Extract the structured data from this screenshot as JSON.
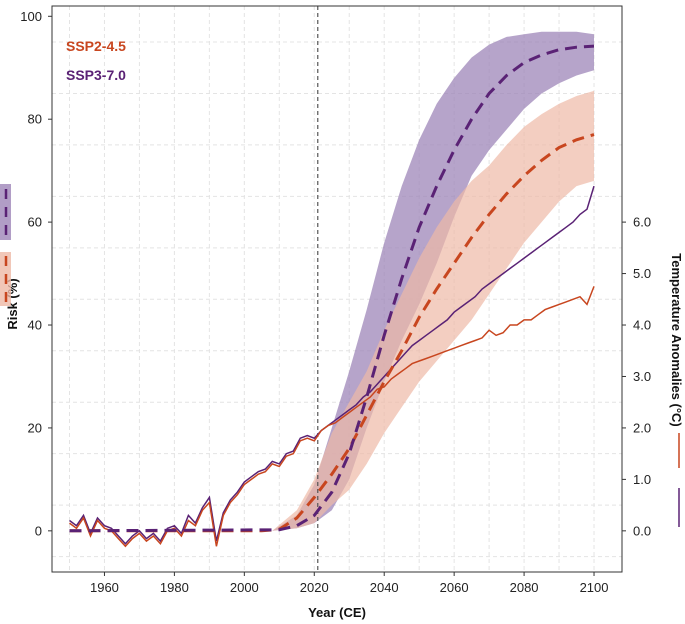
{
  "chart_data": {
    "type": "line",
    "xlabel": "Year (CE)",
    "ylabel": "Risk (%)",
    "y2label": "Temperature Anomalies (°C)",
    "xlim": [
      1945,
      2108
    ],
    "ylim": [
      -8,
      102
    ],
    "y2_mapping": "risk = 10 × temperature (°C)",
    "x_ticks": [
      1960,
      1980,
      2000,
      2020,
      2040,
      2060,
      2080,
      2100
    ],
    "y_ticks": [
      0,
      20,
      40,
      60,
      80,
      100
    ],
    "y2_ticks": [
      "0.0",
      "1.0",
      "2.0",
      "3.0",
      "4.0",
      "5.0",
      "6.0"
    ],
    "y2_tick_values": [
      0,
      1,
      2,
      3,
      4,
      5,
      6
    ],
    "reference_line": {
      "x": 2021,
      "style": "dashed"
    },
    "grid": true,
    "legend": [
      {
        "label": "SSP2-4.5",
        "color": "#c8461f"
      },
      {
        "label": "SSP3-7.0",
        "color": "#5a2275"
      }
    ],
    "colors": {
      "ssp245": "#c8461f",
      "ssp370": "#5a2275",
      "ssp245_band": "#eeb9a6",
      "ssp370_band": "#9d85b8"
    },
    "series": [
      {
        "name": "SSP2-4.5 risk (mean)",
        "kind": "risk_mean",
        "x": [
          1950,
          2005,
          2010,
          2015,
          2020,
          2025,
          2030,
          2035,
          2040,
          2045,
          2050,
          2055,
          2060,
          2065,
          2070,
          2075,
          2080,
          2085,
          2090,
          2095,
          2100
        ],
        "y": [
          0,
          0,
          0.3,
          2.5,
          6.5,
          11,
          16,
          22.5,
          29,
          35,
          41.5,
          47,
          52,
          57,
          61.5,
          65.5,
          69,
          72,
          74.5,
          76,
          77
        ]
      },
      {
        "name": "SSP2-4.5 risk (range)",
        "kind": "risk_band",
        "x": [
          2008,
          2015,
          2020,
          2025,
          2030,
          2035,
          2040,
          2045,
          2050,
          2055,
          2060,
          2065,
          2070,
          2075,
          2080,
          2085,
          2090,
          2095,
          2100
        ],
        "lower": [
          0,
          0.5,
          1.5,
          5,
          8,
          13,
          19,
          24,
          29,
          33,
          37,
          41,
          46,
          51,
          56,
          60,
          64,
          67,
          68
        ],
        "upper": [
          0,
          4,
          10,
          19,
          25,
          31,
          39,
          46,
          53,
          59,
          64,
          68,
          71,
          75,
          78.5,
          81,
          83,
          84.5,
          85.5
        ]
      },
      {
        "name": "SSP3-7.0 risk (mean)",
        "kind": "risk_mean",
        "x": [
          1950,
          2010,
          2015,
          2020,
          2025,
          2030,
          2035,
          2040,
          2045,
          2050,
          2055,
          2060,
          2065,
          2070,
          2075,
          2080,
          2085,
          2090,
          2095,
          2100
        ],
        "y": [
          0,
          0.2,
          1,
          3,
          7.5,
          15,
          26,
          38,
          49,
          59,
          67,
          74,
          80,
          85,
          88.5,
          91,
          92.5,
          93.5,
          94,
          94.2
        ]
      },
      {
        "name": "SSP3-7.0 risk (range)",
        "kind": "risk_band",
        "x": [
          2008,
          2015,
          2020,
          2025,
          2030,
          2035,
          2040,
          2045,
          2050,
          2055,
          2060,
          2065,
          2070,
          2075,
          2080,
          2085,
          2090,
          2095,
          2100
        ],
        "lower": [
          0,
          0.5,
          1.5,
          4,
          10,
          20,
          29,
          37,
          44,
          52,
          61,
          69,
          74,
          78,
          82,
          85,
          87,
          88.5,
          89.5
        ],
        "upper": [
          0,
          3,
          9,
          20,
          31,
          43,
          56,
          67,
          76,
          83,
          88,
          92,
          94.5,
          96,
          96.5,
          97,
          97,
          97,
          96.5
        ]
      },
      {
        "name": "SSP2-4.5 temperature anomaly",
        "kind": "temperature",
        "x": [
          1950,
          1952,
          1954,
          1956,
          1958,
          1960,
          1962,
          1964,
          1966,
          1968,
          1970,
          1972,
          1974,
          1976,
          1978,
          1980,
          1982,
          1984,
          1986,
          1988,
          1990,
          1992,
          1994,
          1996,
          1998,
          2000,
          2002,
          2004,
          2006,
          2008,
          2010,
          2012,
          2014,
          2016,
          2018,
          2020,
          2022,
          2024,
          2026,
          2028,
          2030,
          2032,
          2034,
          2036,
          2038,
          2040,
          2042,
          2044,
          2046,
          2048,
          2050,
          2052,
          2054,
          2056,
          2058,
          2060,
          2062,
          2064,
          2066,
          2068,
          2070,
          2072,
          2074,
          2076,
          2078,
          2080,
          2082,
          2084,
          2086,
          2088,
          2090,
          2092,
          2094,
          2096,
          2098,
          2100
        ],
        "y": [
          0.15,
          0.05,
          0.25,
          -0.1,
          0.2,
          0.05,
          0.0,
          -0.15,
          -0.3,
          -0.15,
          -0.05,
          -0.2,
          -0.1,
          -0.25,
          0.0,
          0.05,
          -0.1,
          0.2,
          0.1,
          0.4,
          0.55,
          -0.3,
          0.3,
          0.55,
          0.7,
          0.9,
          1.0,
          1.1,
          1.15,
          1.3,
          1.25,
          1.45,
          1.5,
          1.75,
          1.8,
          1.75,
          1.95,
          2.05,
          2.1,
          2.2,
          2.3,
          2.4,
          2.5,
          2.6,
          2.75,
          2.8,
          2.95,
          3.05,
          3.15,
          3.25,
          3.3,
          3.35,
          3.4,
          3.45,
          3.5,
          3.55,
          3.6,
          3.65,
          3.7,
          3.75,
          3.9,
          3.8,
          3.85,
          4.0,
          4.0,
          4.1,
          4.1,
          4.2,
          4.3,
          4.35,
          4.4,
          4.45,
          4.5,
          4.55,
          4.4,
          4.75
        ]
      },
      {
        "name": "SSP3-7.0 temperature anomaly",
        "kind": "temperature",
        "x": [
          1950,
          1952,
          1954,
          1956,
          1958,
          1960,
          1962,
          1964,
          1966,
          1968,
          1970,
          1972,
          1974,
          1976,
          1978,
          1980,
          1982,
          1984,
          1986,
          1988,
          1990,
          1992,
          1994,
          1996,
          1998,
          2000,
          2002,
          2004,
          2006,
          2008,
          2010,
          2012,
          2014,
          2016,
          2018,
          2020,
          2022,
          2024,
          2026,
          2028,
          2030,
          2032,
          2034,
          2036,
          2038,
          2040,
          2042,
          2044,
          2046,
          2048,
          2050,
          2052,
          2054,
          2056,
          2058,
          2060,
          2062,
          2064,
          2066,
          2068,
          2070,
          2072,
          2074,
          2076,
          2078,
          2080,
          2082,
          2084,
          2086,
          2088,
          2090,
          2092,
          2094,
          2096,
          2098,
          2100
        ],
        "y": [
          0.2,
          0.1,
          0.3,
          -0.05,
          0.25,
          0.1,
          0.05,
          -0.1,
          -0.25,
          -0.1,
          0.0,
          -0.15,
          -0.05,
          -0.2,
          0.05,
          0.1,
          -0.05,
          0.3,
          0.15,
          0.45,
          0.65,
          -0.2,
          0.35,
          0.6,
          0.75,
          0.95,
          1.05,
          1.15,
          1.2,
          1.35,
          1.3,
          1.5,
          1.55,
          1.8,
          1.85,
          1.8,
          1.95,
          2.05,
          2.15,
          2.25,
          2.35,
          2.45,
          2.6,
          2.7,
          2.85,
          3.0,
          3.15,
          3.3,
          3.45,
          3.6,
          3.7,
          3.8,
          3.9,
          4.0,
          4.1,
          4.25,
          4.35,
          4.45,
          4.55,
          4.7,
          4.8,
          4.9,
          5.0,
          5.1,
          5.2,
          5.3,
          5.4,
          5.5,
          5.6,
          5.7,
          5.8,
          5.9,
          6.0,
          6.15,
          6.25,
          6.7
        ]
      }
    ]
  }
}
